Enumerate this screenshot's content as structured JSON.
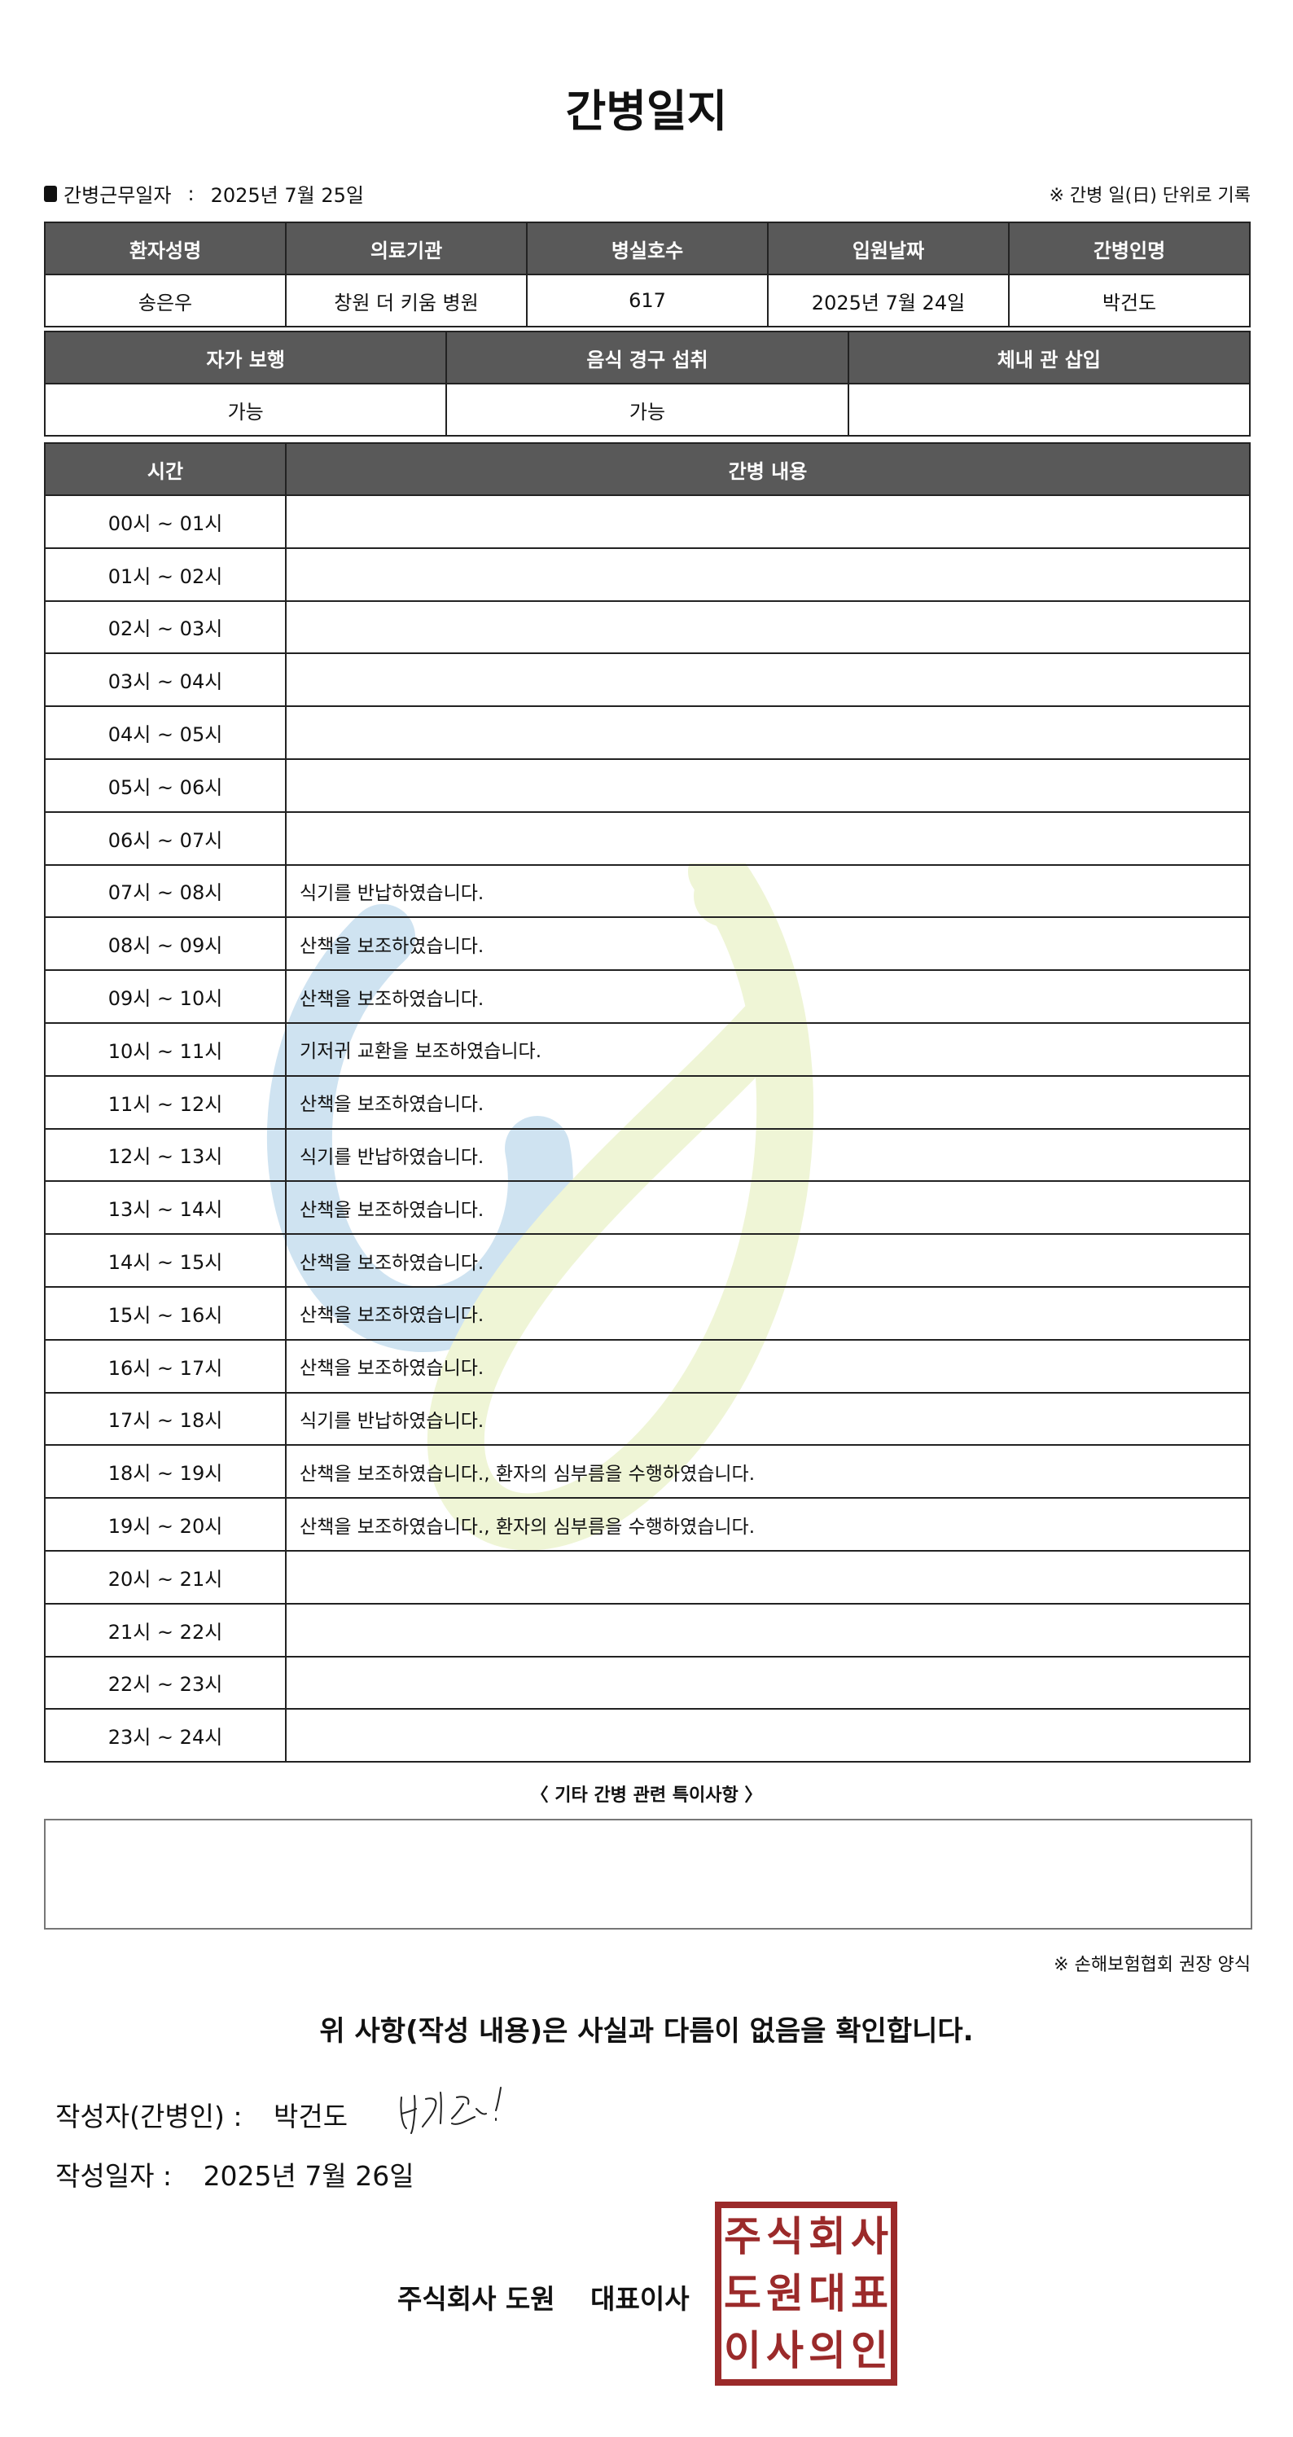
{
  "title": "간병일지",
  "work_date": {
    "label": "간병근무일자",
    "separator": ":",
    "value": "2025년 7월 25일"
  },
  "unit_note": "※ 간병 일(日) 단위로 기록",
  "info_table": {
    "headers": [
      "환자성명",
      "의료기관",
      "병실호수",
      "입원날짜",
      "간병인명"
    ],
    "values": [
      "송은우",
      "창원 더 키움 병원",
      "617",
      "2025년 7월 24일",
      "박건도"
    ]
  },
  "status_table": {
    "headers": [
      "자가 보행",
      "음식 경구 섭취",
      "체내 관 삽입"
    ],
    "values": [
      "가능",
      "가능",
      ""
    ]
  },
  "log_table": {
    "headers": [
      "시간",
      "간병 내용"
    ],
    "rows": [
      {
        "time": "00시 ~ 01시",
        "content": ""
      },
      {
        "time": "01시 ~ 02시",
        "content": ""
      },
      {
        "time": "02시 ~ 03시",
        "content": ""
      },
      {
        "time": "03시 ~ 04시",
        "content": ""
      },
      {
        "time": "04시 ~ 05시",
        "content": ""
      },
      {
        "time": "05시 ~ 06시",
        "content": ""
      },
      {
        "time": "06시 ~ 07시",
        "content": ""
      },
      {
        "time": "07시 ~ 08시",
        "content": "식기를 반납하였습니다."
      },
      {
        "time": "08시 ~ 09시",
        "content": "산책을 보조하였습니다."
      },
      {
        "time": "09시 ~ 10시",
        "content": "산책을 보조하였습니다."
      },
      {
        "time": "10시 ~ 11시",
        "content": "기저귀 교환을 보조하였습니다."
      },
      {
        "time": "11시 ~ 12시",
        "content": "산책을 보조하였습니다."
      },
      {
        "time": "12시 ~ 13시",
        "content": "식기를 반납하였습니다."
      },
      {
        "time": "13시 ~ 14시",
        "content": "산책을 보조하였습니다."
      },
      {
        "time": "14시 ~ 15시",
        "content": "산책을 보조하였습니다."
      },
      {
        "time": "15시 ~ 16시",
        "content": "산책을 보조하였습니다."
      },
      {
        "time": "16시 ~ 17시",
        "content": "산책을 보조하였습니다."
      },
      {
        "time": "17시 ~ 18시",
        "content": "식기를 반납하였습니다."
      },
      {
        "time": "18시 ~ 19시",
        "content": "산책을 보조하였습니다., 환자의 심부름을 수행하였습니다."
      },
      {
        "time": "19시 ~ 20시",
        "content": "산책을 보조하였습니다., 환자의 심부름을 수행하였습니다."
      },
      {
        "time": "20시 ~ 21시",
        "content": ""
      },
      {
        "time": "21시 ~ 22시",
        "content": ""
      },
      {
        "time": "22시 ~ 23시",
        "content": ""
      },
      {
        "time": "23시 ~ 24시",
        "content": ""
      }
    ]
  },
  "notes": {
    "label": "〈 기타 간병 관련 특이사항 〉",
    "value": ""
  },
  "association_note": "※ 손해보험협회 권장 양식",
  "confirmation": "위 사항(작성 내용)은 사실과 다름이 없음을 확인합니다.",
  "writer": {
    "label": "작성자(간병인) :",
    "name": "박건도"
  },
  "written_date": {
    "label": "작성일자 :",
    "value": "2025년 7월 26일"
  },
  "company": {
    "name": "주식회사 도원",
    "title": "대표이사"
  },
  "stamp": {
    "text": [
      "주",
      "식",
      "회",
      "사",
      "도",
      "원",
      "대",
      "표",
      "이",
      "사",
      "의",
      "인"
    ],
    "color": "#9b2a2a"
  },
  "colors": {
    "header_bg": "#595959",
    "watermark_blue": "#a9cde6",
    "watermark_green": "#e2edb5"
  }
}
